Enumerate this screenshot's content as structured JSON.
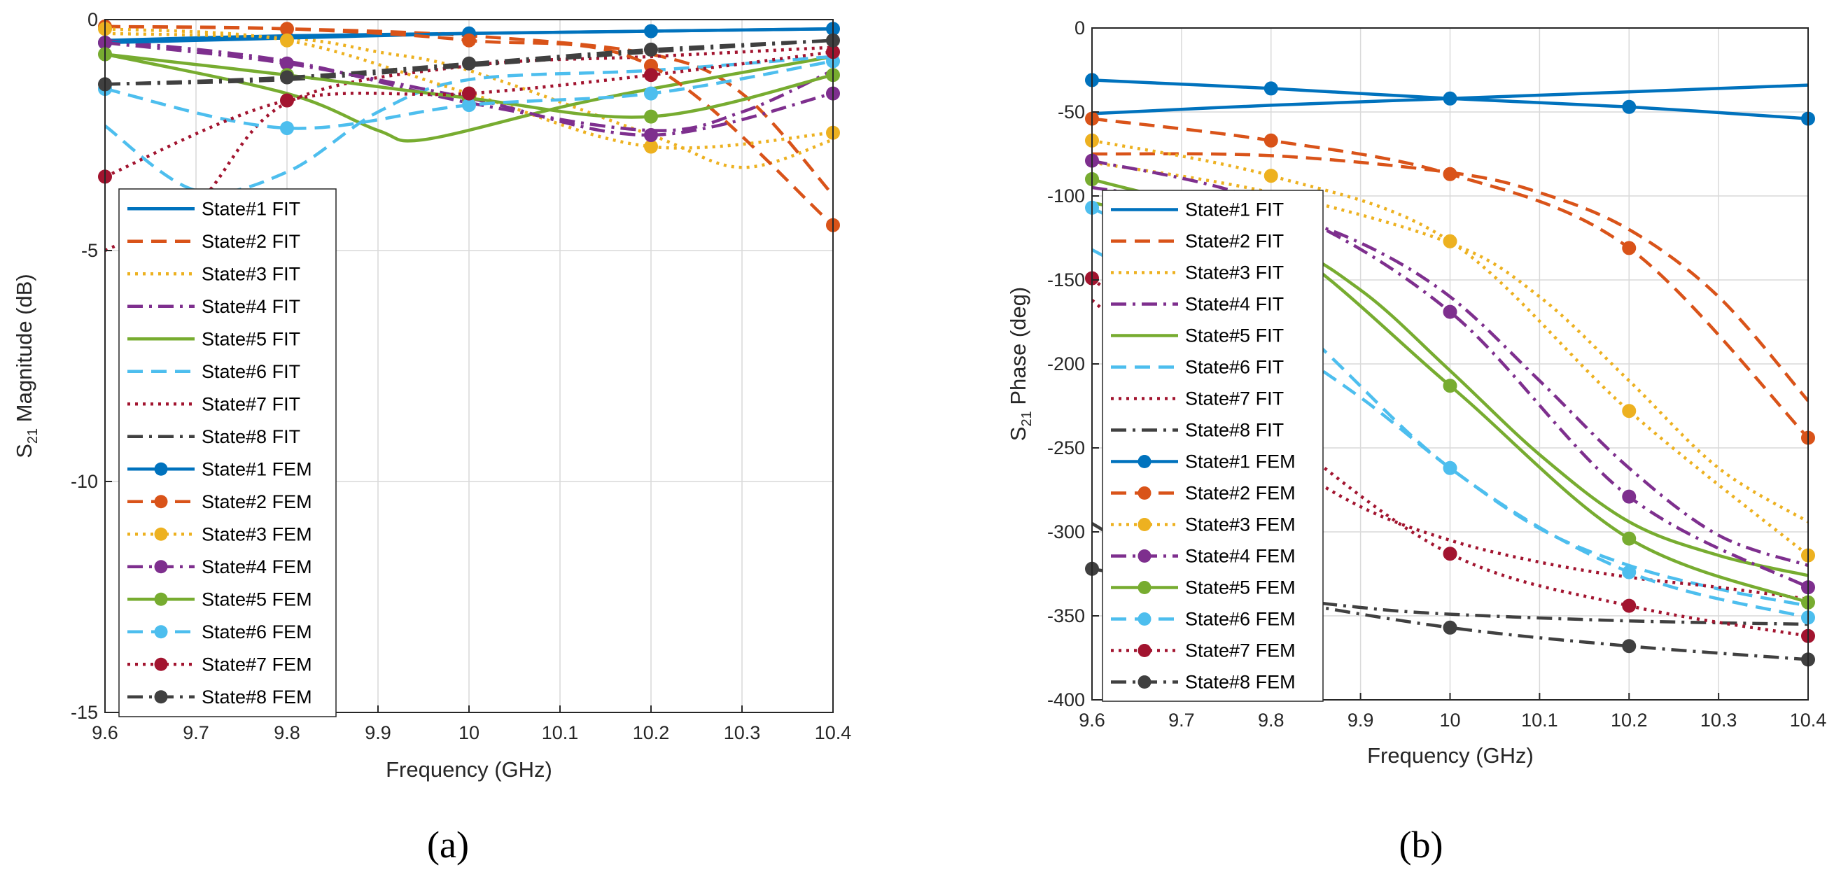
{
  "colors": {
    "s1": "#0072BD",
    "s2": "#D95319",
    "s3": "#EDB120",
    "s4": "#7E2F8E",
    "s5": "#77AC30",
    "s6": "#4DBEEE",
    "s7": "#A2142F",
    "s8": "#404040"
  },
  "chart_data": [
    {
      "type": "line",
      "panel_label": "(a)",
      "xlabel": "Frequency (GHz)",
      "ylabel": "S",
      "ylabel_sub": "21",
      "ylabel_rest": " Magnitude (dB)",
      "xlim": [
        9.6,
        10.4
      ],
      "ylim": [
        -15,
        0
      ],
      "x_ticks": [
        "9.6",
        "9.7",
        "9.8",
        "9.9",
        "10",
        "10.1",
        "10.2",
        "10.3",
        "10.4"
      ],
      "y_ticks": [
        "0",
        "-5",
        "-10",
        "-15"
      ],
      "grid": true,
      "legend_position": "left-middle",
      "series": [
        {
          "name": "State#1 FIT",
          "style": "solid",
          "color": "s1",
          "x": [
            9.6,
            9.8,
            10.0,
            10.2,
            10.4
          ],
          "y": [
            -0.45,
            -0.35,
            -0.3,
            -0.25,
            -0.2
          ]
        },
        {
          "name": "State#2 FIT",
          "style": "dashed",
          "color": "s2",
          "x": [
            9.6,
            9.8,
            10.0,
            10.2,
            10.3,
            10.4
          ],
          "y": [
            -0.15,
            -0.2,
            -0.35,
            -0.75,
            -1.6,
            -3.8
          ]
        },
        {
          "name": "State#3 FIT",
          "style": "dotted",
          "color": "s3",
          "x": [
            9.6,
            9.8,
            9.9,
            10.0,
            10.2,
            10.3,
            10.4
          ],
          "y": [
            -0.3,
            -0.4,
            -0.7,
            -1.1,
            -2.5,
            -3.2,
            -2.6
          ]
        },
        {
          "name": "State#4 FIT",
          "style": "dashdot",
          "color": "s4",
          "x": [
            9.6,
            9.8,
            10.0,
            10.2,
            10.3,
            10.4
          ],
          "y": [
            -0.45,
            -0.9,
            -1.8,
            -2.4,
            -2.0,
            -1.1
          ]
        },
        {
          "name": "State#5 FIT",
          "style": "solid",
          "color": "s5",
          "x": [
            9.6,
            9.8,
            9.9,
            9.95,
            10.1,
            10.2,
            10.4
          ],
          "y": [
            -0.75,
            -1.6,
            -2.4,
            -2.6,
            -1.9,
            -1.5,
            -0.8
          ]
        },
        {
          "name": "State#6 FIT",
          "style": "dashed",
          "color": "s6",
          "x": [
            9.6,
            9.7,
            9.8,
            9.9,
            10.0,
            10.2,
            10.4
          ],
          "y": [
            -2.3,
            -3.7,
            -3.3,
            -2.0,
            -1.3,
            -1.1,
            -0.8
          ]
        },
        {
          "name": "State#7 FIT",
          "style": "dotted",
          "color": "s7",
          "x": [
            9.6,
            9.7,
            9.8,
            10.0,
            10.2,
            10.4
          ],
          "y": [
            -5.0,
            -4.0,
            -1.8,
            -1.0,
            -0.8,
            -0.6
          ]
        },
        {
          "name": "State#8 FIT",
          "style": "dashdot",
          "color": "s8",
          "x": [
            9.6,
            9.8,
            10.0,
            10.2,
            10.4
          ],
          "y": [
            -1.4,
            -1.3,
            -1.0,
            -0.7,
            -0.45
          ]
        },
        {
          "name": "State#1 FEM",
          "style": "solid",
          "markers": true,
          "color": "s1",
          "x": [
            9.6,
            9.8,
            10.0,
            10.2,
            10.4
          ],
          "y": [
            -0.5,
            -0.4,
            -0.3,
            -0.25,
            -0.2
          ]
        },
        {
          "name": "State#2 FEM",
          "style": "dashed",
          "markers": true,
          "color": "s2",
          "x": [
            9.6,
            9.8,
            10.0,
            10.2,
            10.4
          ],
          "y": [
            -0.15,
            -0.2,
            -0.45,
            -1.0,
            -4.45
          ]
        },
        {
          "name": "State#3 FEM",
          "style": "dotted",
          "markers": true,
          "color": "s3",
          "x": [
            9.6,
            9.8,
            10.0,
            10.2,
            10.4
          ],
          "y": [
            -0.2,
            -0.45,
            -1.6,
            -2.75,
            -2.45
          ]
        },
        {
          "name": "State#4 FEM",
          "style": "dashdot",
          "markers": true,
          "color": "s4",
          "x": [
            9.6,
            9.8,
            10.0,
            10.2,
            10.4
          ],
          "y": [
            -0.5,
            -0.95,
            -1.7,
            -2.5,
            -1.6
          ]
        },
        {
          "name": "State#5 FEM",
          "style": "solid",
          "markers": true,
          "color": "s5",
          "x": [
            9.6,
            9.8,
            10.0,
            10.2,
            10.4
          ],
          "y": [
            -0.75,
            -1.2,
            -1.7,
            -2.1,
            -1.2
          ]
        },
        {
          "name": "State#6 FEM",
          "style": "dashed",
          "markers": true,
          "color": "s6",
          "x": [
            9.6,
            9.8,
            10.0,
            10.2,
            10.4
          ],
          "y": [
            -1.5,
            -2.35,
            -1.85,
            -1.6,
            -0.9
          ]
        },
        {
          "name": "State#7 FEM",
          "style": "dotted",
          "markers": true,
          "color": "s7",
          "x": [
            9.6,
            9.8,
            10.0,
            10.2,
            10.4
          ],
          "y": [
            -3.4,
            -1.75,
            -1.6,
            -1.2,
            -0.7
          ]
        },
        {
          "name": "State#8 FEM",
          "style": "dashdot",
          "markers": true,
          "color": "s8",
          "x": [
            9.6,
            9.8,
            10.0,
            10.2,
            10.4
          ],
          "y": [
            -1.4,
            -1.25,
            -0.95,
            -0.65,
            -0.45
          ]
        }
      ]
    },
    {
      "type": "line",
      "panel_label": "(b)",
      "xlabel": "Frequency (GHz)",
      "ylabel": "S",
      "ylabel_sub": "21",
      "ylabel_rest": " Phase (deg)",
      "xlim": [
        9.6,
        10.4
      ],
      "ylim": [
        -400,
        0
      ],
      "x_ticks": [
        "9.6",
        "9.7",
        "9.8",
        "9.9",
        "10",
        "10.1",
        "10.2",
        "10.3",
        "10.4"
      ],
      "y_ticks": [
        "0",
        "-50",
        "-100",
        "-150",
        "-200",
        "-250",
        "-300",
        "-350",
        "-400"
      ],
      "grid": true,
      "legend_position": "left-middle",
      "series": [
        {
          "name": "State#1 FIT",
          "style": "solid",
          "color": "s1",
          "x": [
            9.6,
            9.8,
            10.0,
            10.2,
            10.4
          ],
          "y": [
            -51,
            -46,
            -42,
            -38,
            -34
          ]
        },
        {
          "name": "State#2 FIT",
          "style": "dashed",
          "color": "s2",
          "x": [
            9.6,
            9.8,
            10.0,
            10.1,
            10.2,
            10.3,
            10.4
          ],
          "y": [
            -75,
            -76,
            -86,
            -98,
            -120,
            -160,
            -222
          ]
        },
        {
          "name": "State#3 FIT",
          "style": "dotted",
          "color": "s3",
          "x": [
            9.6,
            9.8,
            10.0,
            10.1,
            10.2,
            10.3,
            10.4
          ],
          "y": [
            -80,
            -98,
            -128,
            -160,
            -210,
            -262,
            -294
          ]
        },
        {
          "name": "State#4 FIT",
          "style": "dashdot",
          "color": "s4",
          "x": [
            9.6,
            9.8,
            9.9,
            10.0,
            10.1,
            10.2,
            10.3,
            10.4
          ],
          "y": [
            -95,
            -111,
            -128,
            -160,
            -210,
            -262,
            -302,
            -320
          ]
        },
        {
          "name": "State#5 FIT",
          "style": "solid",
          "color": "s5",
          "x": [
            9.6,
            9.8,
            9.9,
            10.0,
            10.1,
            10.2,
            10.3,
            10.4
          ],
          "y": [
            -104,
            -127,
            -156,
            -204,
            -254,
            -294,
            -314,
            -326
          ]
        },
        {
          "name": "State#6 FIT",
          "style": "dashed",
          "color": "s6",
          "x": [
            9.6,
            9.7,
            9.8,
            9.9,
            10.0,
            10.1,
            10.2,
            10.3,
            10.4
          ],
          "y": [
            -132,
            -160,
            -185,
            -220,
            -262,
            -298,
            -320,
            -334,
            -344
          ]
        },
        {
          "name": "State#7 FIT",
          "style": "dotted",
          "color": "s7",
          "x": [
            9.6,
            9.7,
            9.8,
            9.9,
            10.0,
            10.1,
            10.2,
            10.3,
            10.4
          ],
          "y": [
            -162,
            -208,
            -252,
            -285,
            -305,
            -318,
            -327,
            -333,
            -340
          ]
        },
        {
          "name": "State#8 FIT",
          "style": "dashdot",
          "color": "s8",
          "x": [
            9.6,
            9.7,
            9.8,
            9.9,
            10.0,
            10.2,
            10.4
          ],
          "y": [
            -295,
            -325,
            -338,
            -345,
            -349,
            -353,
            -355
          ]
        },
        {
          "name": "State#1 FEM",
          "style": "solid",
          "markers": true,
          "color": "s1",
          "x": [
            9.6,
            9.8,
            10.0,
            10.2,
            10.4
          ],
          "y": [
            -31,
            -36,
            -42,
            -47,
            -54
          ]
        },
        {
          "name": "State#2 FEM",
          "style": "dashed",
          "markers": true,
          "color": "s2",
          "x": [
            9.6,
            9.8,
            10.0,
            10.2,
            10.4
          ],
          "y": [
            -54,
            -67,
            -87,
            -131,
            -244
          ]
        },
        {
          "name": "State#3 FEM",
          "style": "dotted",
          "markers": true,
          "color": "s3",
          "x": [
            9.6,
            9.8,
            10.0,
            10.2,
            10.4
          ],
          "y": [
            -67,
            -88,
            -127,
            -228,
            -314
          ]
        },
        {
          "name": "State#4 FEM",
          "style": "dashdot",
          "markers": true,
          "color": "s4",
          "x": [
            9.6,
            9.8,
            10.0,
            10.2,
            10.4
          ],
          "y": [
            -79,
            -105,
            -169,
            -279,
            -333
          ]
        },
        {
          "name": "State#5 FEM",
          "style": "solid",
          "markers": true,
          "color": "s5",
          "x": [
            9.6,
            9.8,
            10.0,
            10.2,
            10.4
          ],
          "y": [
            -90,
            -125,
            -213,
            -304,
            -342
          ]
        },
        {
          "name": "State#6 FEM",
          "style": "dashed",
          "markers": true,
          "color": "s6",
          "x": [
            9.6,
            9.8,
            10.0,
            10.2,
            10.4
          ],
          "y": [
            -107,
            -165,
            -262,
            -324,
            -351
          ]
        },
        {
          "name": "State#7 FEM",
          "style": "dotted",
          "markers": true,
          "color": "s7",
          "x": [
            9.6,
            9.8,
            10.0,
            10.2,
            10.4
          ],
          "y": [
            -149,
            -237,
            -313,
            -344,
            -362
          ]
        },
        {
          "name": "State#8 FEM",
          "style": "dashdot",
          "markers": true,
          "color": "s8",
          "x": [
            9.6,
            9.8,
            10.0,
            10.2,
            10.4
          ],
          "y": [
            -322,
            -340,
            -357,
            -368,
            -376
          ]
        }
      ]
    }
  ]
}
